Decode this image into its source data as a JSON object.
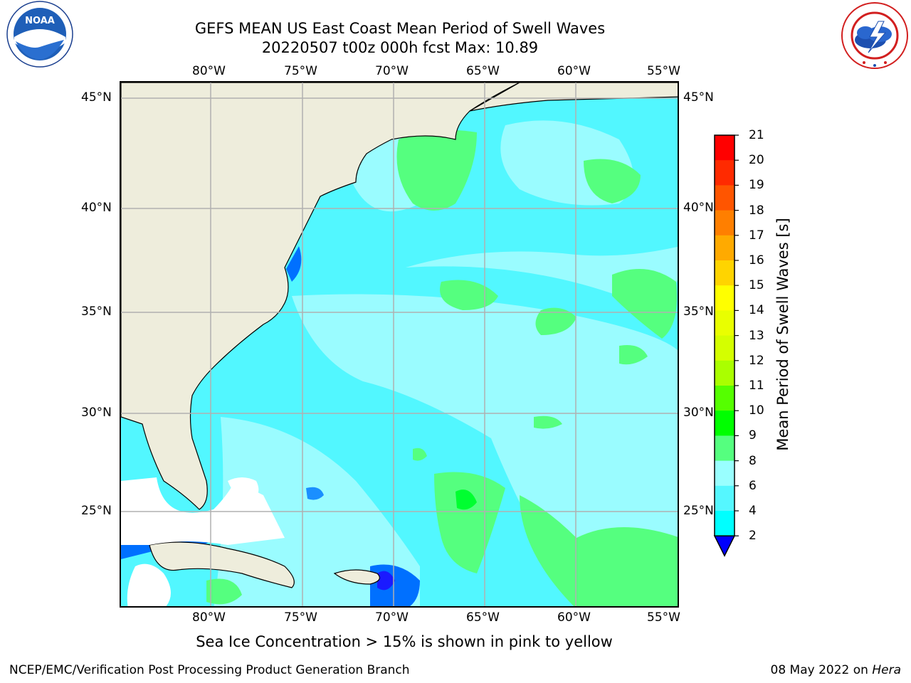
{
  "title": {
    "line1": "GEFS MEAN US East Coast Mean Period of Swell Waves",
    "line2": "20220507 t00z 000h fcst   Max: 10.89"
  },
  "logos": {
    "left": {
      "name": "noaa-logo",
      "text": "NOAA"
    },
    "right": {
      "name": "nws-logo",
      "text": "NATIONAL WEATHER SERVICE"
    }
  },
  "map": {
    "longitude_ticks": [
      "80°W",
      "75°W",
      "70°W",
      "65°W",
      "60°W",
      "55°W"
    ],
    "latitude_ticks": [
      "45°N",
      "40°N",
      "35°N",
      "30°N",
      "25°N"
    ],
    "land_color": "#eeeddc",
    "ocean_base_color": "#52f7ff",
    "grid_color": "#b0b0b0"
  },
  "colorbar": {
    "label": "Mean Period of Swell Waves [s]",
    "ticks": [
      "21",
      "20",
      "19",
      "18",
      "17",
      "16",
      "15",
      "14",
      "13",
      "12",
      "11",
      "10",
      "9",
      "8",
      "6",
      "4",
      "2"
    ],
    "colors": [
      "#ff0000",
      "#ff2a00",
      "#ff5500",
      "#ff7f00",
      "#ffaa00",
      "#ffd400",
      "#ffff00",
      "#e9ff00",
      "#d4ff00",
      "#aaff00",
      "#55ff00",
      "#00ff00",
      "#55ff7f",
      "#99ffff",
      "#55f7ff",
      "#00ffff",
      "#00aaff",
      "#0055ff"
    ],
    "under_color": "#0000ff"
  },
  "footer": {
    "sea_ice_note": "Sea Ice Concentration > 15% is shown in pink to yellow",
    "credit_left": "NCEP/EMC/Verification Post Processing Product Generation Branch",
    "credit_date": "08 May 2022 on",
    "credit_host": "Hera"
  }
}
